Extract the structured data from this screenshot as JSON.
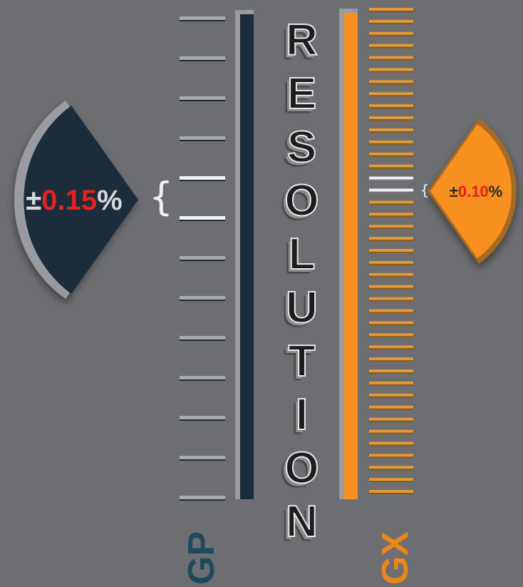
{
  "title": "RESOLUTION",
  "left": {
    "sign": "±",
    "value": "0.15",
    "unit": "%",
    "label": "GP"
  },
  "right": {
    "sign": "±",
    "value": "0.10",
    "unit": "%",
    "label": "GX"
  }
}
